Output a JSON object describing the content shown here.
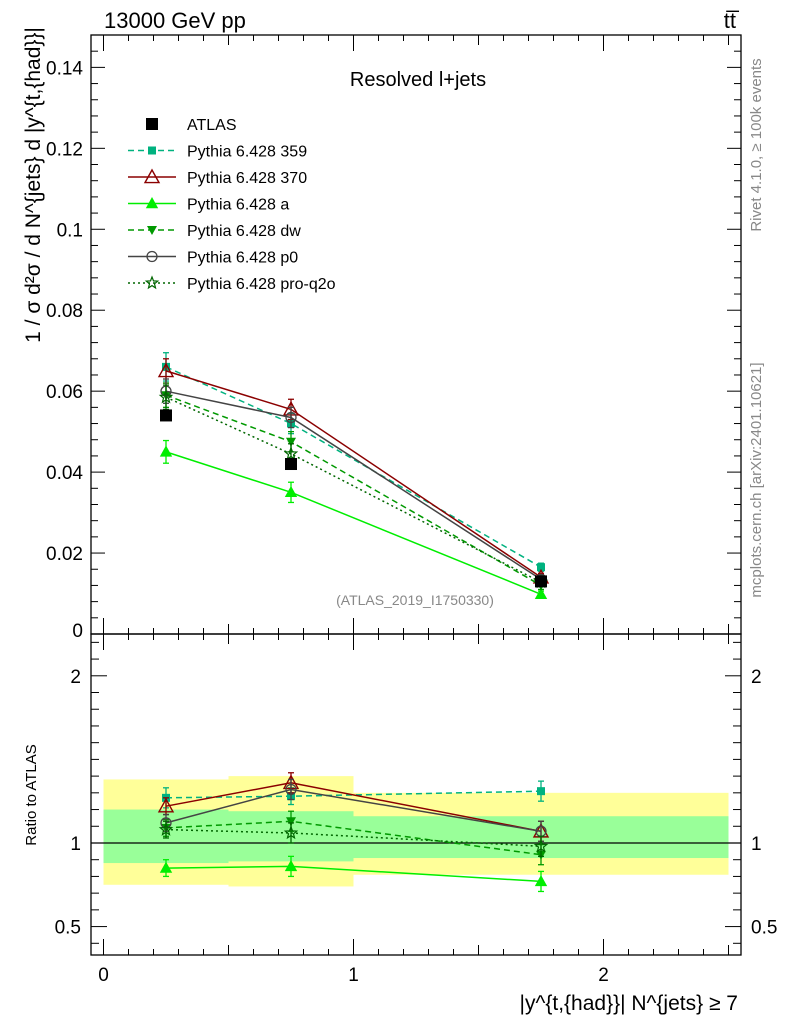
{
  "header": {
    "left_label": "13000 GeV pp",
    "right_label": "tt̅"
  },
  "side_labels": {
    "rivet": "Rivet 4.1.0, ≥ 100k events",
    "mcplots": "mcplots.cern.ch [arXiv:2401.10621]"
  },
  "chart_data": [
    {
      "type": "line",
      "id": "main",
      "title": "Resolved l+jets",
      "ylabel": "1 / σ d²σ / d N^{jets} d |y^{t,{had}}|",
      "ylim": [
        0,
        0.148
      ],
      "yticks": [
        {
          "value": 0.02,
          "label": "0.02"
        },
        {
          "value": 0.04,
          "label": "0.04"
        },
        {
          "value": 0.06,
          "label": "0.06"
        },
        {
          "value": 0.08,
          "label": "0.08"
        },
        {
          "value": 0.1,
          "label": "0.1"
        },
        {
          "value": 0.12,
          "label": "0.12"
        },
        {
          "value": 0.14,
          "label": "0.14"
        },
        {
          "value": 0,
          "label": "0"
        }
      ],
      "xlim": [
        -0.05,
        2.55
      ],
      "watermark": "(ATLAS_2019_I1750330)",
      "data": {
        "name": "ATLAS",
        "x": [
          0.25,
          0.75,
          1.75
        ],
        "y": [
          0.054,
          0.042,
          0.013
        ]
      },
      "series": [
        {
          "name": "Pythia 6.428 359",
          "color": "#00b27f",
          "dash": "6,4",
          "marker": "square",
          "x": [
            0.25,
            0.75,
            1.75
          ],
          "y": [
            0.066,
            0.052,
            0.0165
          ],
          "err": [
            0.0035,
            0.0025,
            0.001
          ]
        },
        {
          "name": "Pythia 6.428 370",
          "color": "#8b0000",
          "dash": "",
          "marker": "triangle-open",
          "x": [
            0.25,
            0.75,
            1.75
          ],
          "y": [
            0.065,
            0.0555,
            0.014
          ],
          "err": [
            0.003,
            0.0025,
            0.001
          ]
        },
        {
          "name": "Pythia 6.428 a",
          "color": "#00ee00",
          "dash": "",
          "marker": "triangle",
          "x": [
            0.25,
            0.75,
            1.75
          ],
          "y": [
            0.045,
            0.035,
            0.0098
          ],
          "err": [
            0.0028,
            0.0025,
            0.0008
          ]
        },
        {
          "name": "Pythia 6.428 dw",
          "color": "#009900",
          "dash": "6,4",
          "marker": "triangle-down",
          "x": [
            0.25,
            0.75,
            1.75
          ],
          "y": [
            0.059,
            0.0475,
            0.012
          ],
          "err": [
            0.003,
            0.0025,
            0.001
          ]
        },
        {
          "name": "Pythia 6.428 p0",
          "color": "#444444",
          "dash": "",
          "marker": "circle-open",
          "x": [
            0.25,
            0.75,
            1.75
          ],
          "y": [
            0.06,
            0.0535,
            0.0135
          ],
          "err": [
            0.003,
            0.0025,
            0.001
          ]
        },
        {
          "name": "Pythia 6.428 pro-q2o",
          "color": "#006600",
          "dash": "2,3",
          "marker": "star",
          "x": [
            0.25,
            0.75,
            1.75
          ],
          "y": [
            0.0585,
            0.0445,
            0.0128
          ],
          "err": [
            0.003,
            0.0025,
            0.001
          ]
        }
      ]
    },
    {
      "type": "line",
      "id": "ratio",
      "ylabel": "Ratio to ATLAS",
      "ylim": [
        0.33,
        2.25
      ],
      "yticks": [
        {
          "value": 0.5,
          "label": "0.5"
        },
        {
          "value": 1,
          "label": "1"
        },
        {
          "value": 2,
          "label": "2"
        }
      ],
      "xlim": [
        -0.05,
        2.55
      ],
      "xticks": [
        {
          "value": 0,
          "label": "0"
        },
        {
          "value": 1,
          "label": "1"
        },
        {
          "value": 2,
          "label": "2"
        }
      ],
      "xlabel": "|y^{t,{had}}| N^{jets} ≥ 7",
      "bands": [
        {
          "x0": 0,
          "x1": 0.5,
          "yellow": [
            0.75,
            1.38
          ],
          "green": [
            0.88,
            1.2
          ]
        },
        {
          "x0": 0.5,
          "x1": 1.0,
          "yellow": [
            0.74,
            1.4
          ],
          "green": [
            0.89,
            1.19
          ]
        },
        {
          "x0": 1.0,
          "x1": 2.5,
          "yellow": [
            0.81,
            1.3
          ],
          "green": [
            0.91,
            1.16
          ]
        }
      ],
      "series": [
        {
          "name": "Pythia 6.428 359",
          "color": "#00b27f",
          "dash": "6,4",
          "marker": "square",
          "x": [
            0.25,
            0.75,
            1.75
          ],
          "y": [
            1.27,
            1.28,
            1.31
          ],
          "err": [
            0.06,
            0.05,
            0.06
          ]
        },
        {
          "name": "Pythia 6.428 370",
          "color": "#8b0000",
          "dash": "",
          "marker": "triangle-open",
          "x": [
            0.25,
            0.75,
            1.75
          ],
          "y": [
            1.22,
            1.36,
            1.07
          ],
          "err": [
            0.05,
            0.06,
            0.06
          ]
        },
        {
          "name": "Pythia 6.428 a",
          "color": "#00ee00",
          "dash": "",
          "marker": "triangle",
          "x": [
            0.25,
            0.75,
            1.75
          ],
          "y": [
            0.85,
            0.86,
            0.77
          ],
          "err": [
            0.05,
            0.06,
            0.06
          ]
        },
        {
          "name": "Pythia 6.428 dw",
          "color": "#009900",
          "dash": "6,4",
          "marker": "triangle-down",
          "x": [
            0.25,
            0.75,
            1.75
          ],
          "y": [
            1.09,
            1.13,
            0.93
          ],
          "err": [
            0.05,
            0.06,
            0.06
          ]
        },
        {
          "name": "Pythia 6.428 p0",
          "color": "#444444",
          "dash": "",
          "marker": "circle-open",
          "x": [
            0.25,
            0.75,
            1.75
          ],
          "y": [
            1.12,
            1.32,
            1.07
          ],
          "err": [
            0.05,
            0.06,
            0.06
          ]
        },
        {
          "name": "Pythia 6.428 pro-q2o",
          "color": "#006600",
          "dash": "2,3",
          "marker": "star",
          "x": [
            0.25,
            0.75,
            1.75
          ],
          "y": [
            1.08,
            1.06,
            0.98
          ],
          "err": [
            0.05,
            0.06,
            0.06
          ]
        }
      ]
    }
  ]
}
